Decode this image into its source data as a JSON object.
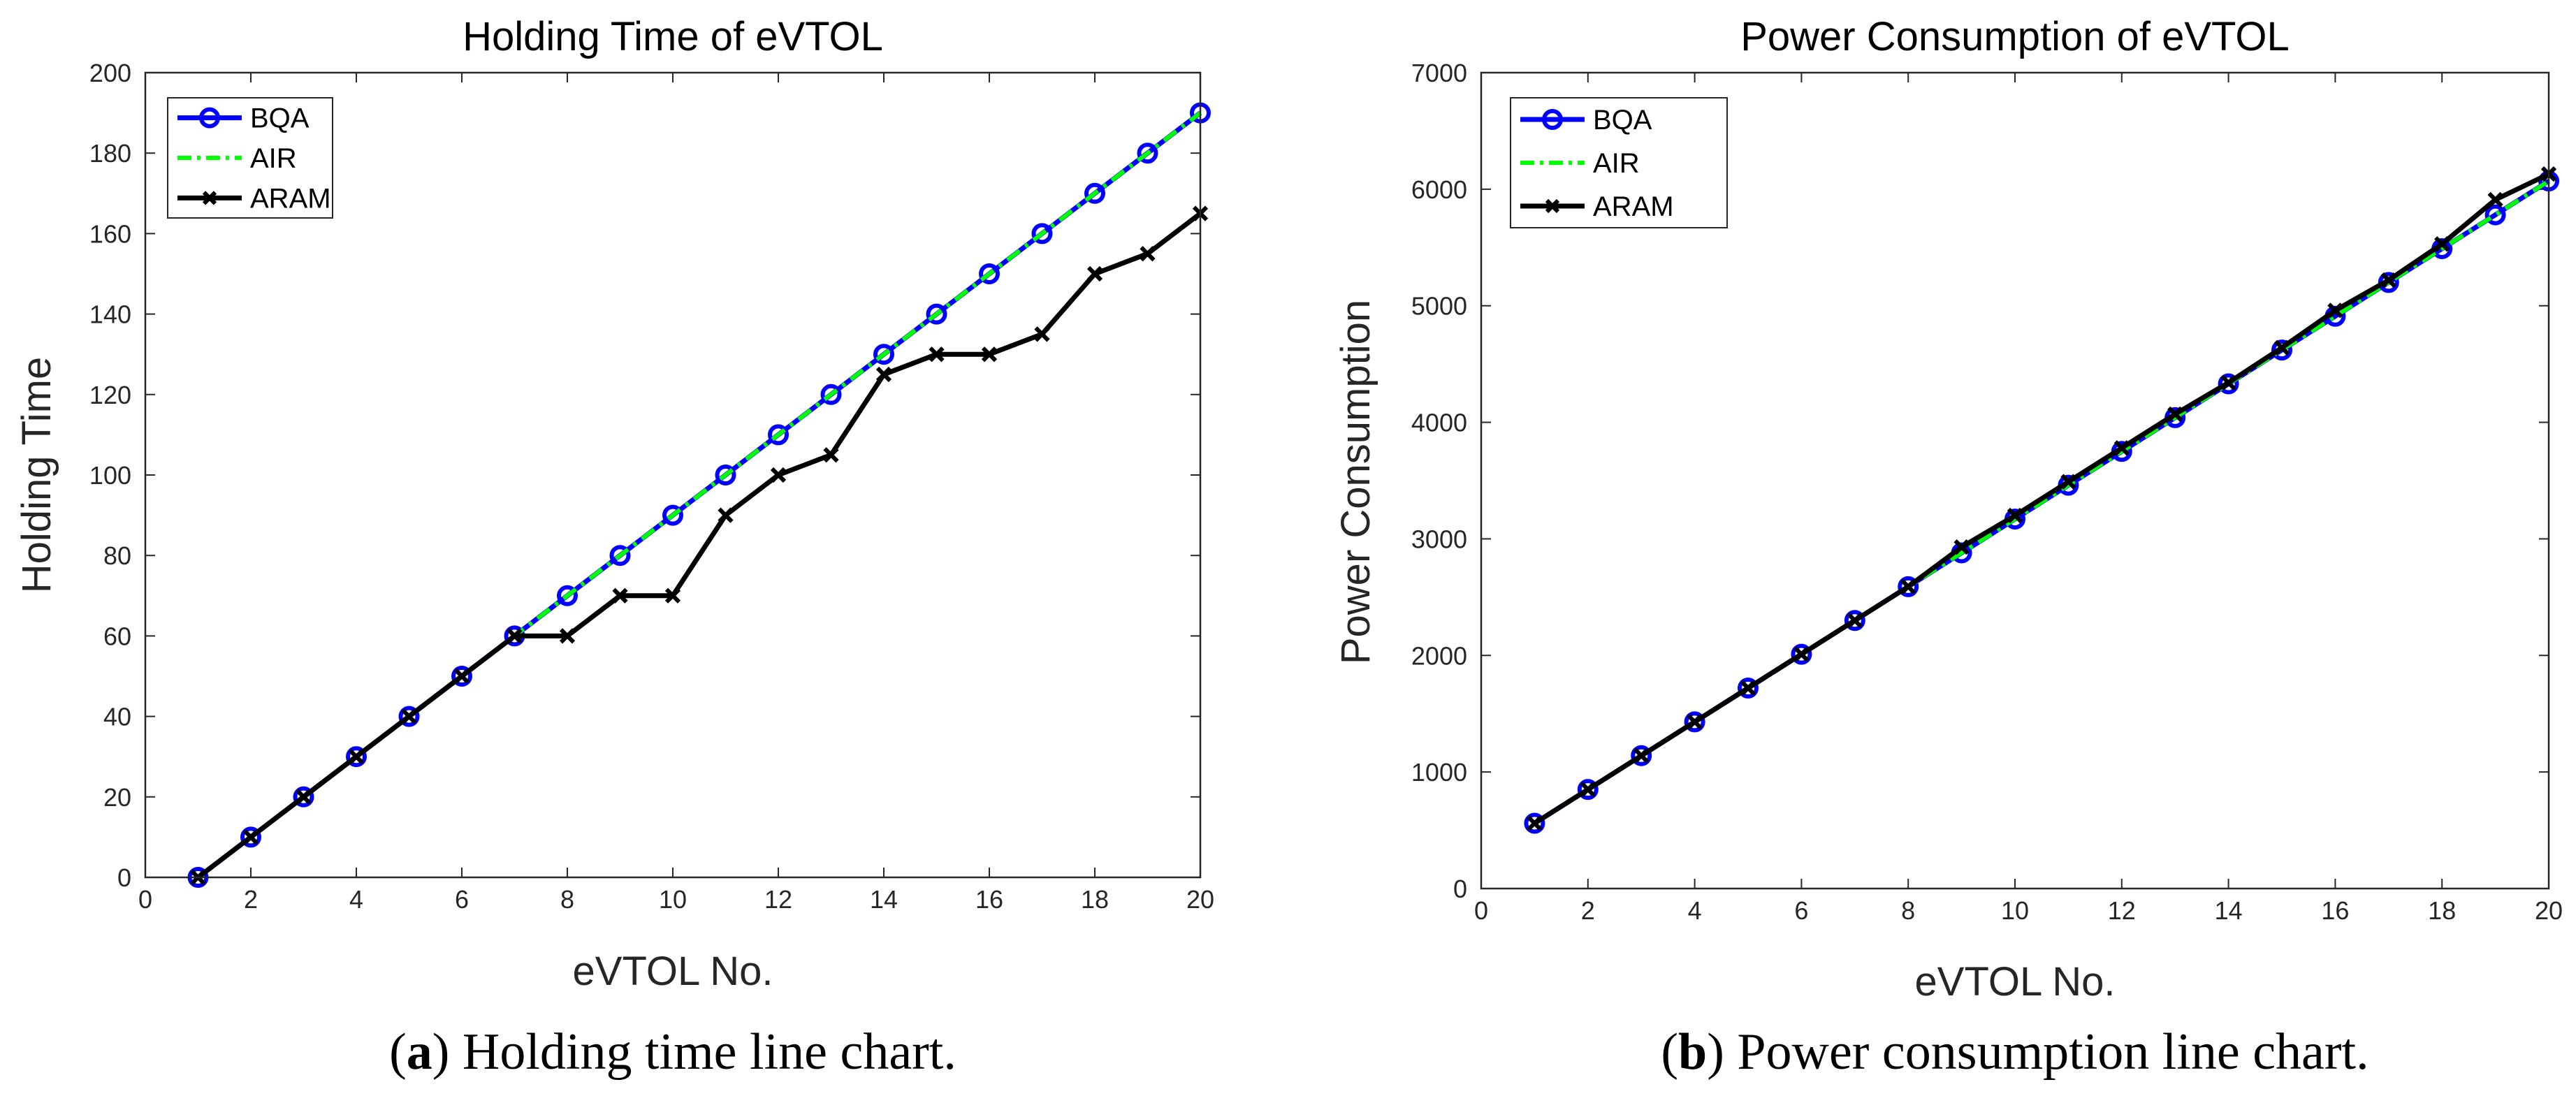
{
  "chart_data": [
    {
      "type": "line",
      "title": "Holding Time of eVTOL",
      "xlabel": "eVTOL No.",
      "ylabel": "Holding Time",
      "xlim": [
        0,
        20
      ],
      "ylim": [
        0,
        200
      ],
      "xticks": [
        0,
        2,
        4,
        6,
        8,
        10,
        12,
        14,
        16,
        18,
        20
      ],
      "yticks": [
        0,
        20,
        40,
        60,
        80,
        100,
        120,
        140,
        160,
        180,
        200
      ],
      "x": [
        1,
        2,
        3,
        4,
        5,
        6,
        7,
        8,
        9,
        10,
        11,
        12,
        13,
        14,
        15,
        16,
        17,
        18,
        19,
        20
      ],
      "legend_position": "top-left",
      "series": [
        {
          "name": "BQA",
          "color": "#0000ff",
          "marker": "circle",
          "style": "solid",
          "values": [
            0,
            10,
            20,
            30,
            40,
            50,
            60,
            70,
            80,
            90,
            100,
            110,
            120,
            130,
            140,
            150,
            160,
            170,
            180,
            190
          ]
        },
        {
          "name": "AIR",
          "color": "#00ff00",
          "marker": "none",
          "style": "dashdot",
          "values": [
            0,
            10,
            20,
            30,
            40,
            50,
            60,
            70,
            80,
            90,
            100,
            110,
            120,
            130,
            140,
            150,
            160,
            170,
            180,
            190
          ]
        },
        {
          "name": "ARAM",
          "color": "#000000",
          "marker": "x",
          "style": "solid",
          "values": [
            0,
            10,
            20,
            30,
            40,
            50,
            60,
            60,
            70,
            70,
            90,
            100,
            105,
            125,
            130,
            130,
            135,
            150,
            155,
            165
          ]
        }
      ],
      "caption_letter": "a",
      "caption_text": " Holding time line chart."
    },
    {
      "type": "line",
      "title": "Power Consumption of eVTOL",
      "xlabel": "eVTOL No.",
      "ylabel": "Power Consumption",
      "xlim": [
        0,
        20
      ],
      "ylim": [
        0,
        7000
      ],
      "xticks": [
        0,
        2,
        4,
        6,
        8,
        10,
        12,
        14,
        16,
        18,
        20
      ],
      "yticks": [
        0,
        1000,
        2000,
        3000,
        4000,
        5000,
        6000,
        7000
      ],
      "x": [
        1,
        2,
        3,
        4,
        5,
        6,
        7,
        8,
        9,
        10,
        11,
        12,
        13,
        14,
        15,
        16,
        17,
        18,
        19,
        20
      ],
      "legend_position": "top-left",
      "series": [
        {
          "name": "BQA",
          "color": "#0000ff",
          "marker": "circle",
          "style": "solid",
          "values": [
            560,
            850,
            1140,
            1430,
            1720,
            2010,
            2300,
            2590,
            2880,
            3170,
            3460,
            3750,
            4040,
            4330,
            4620,
            4910,
            5200,
            5490,
            5780,
            6070
          ]
        },
        {
          "name": "AIR",
          "color": "#00ff00",
          "marker": "none",
          "style": "dashdot",
          "values": [
            560,
            850,
            1140,
            1430,
            1720,
            2010,
            2300,
            2590,
            2880,
            3170,
            3460,
            3750,
            4040,
            4330,
            4620,
            4910,
            5200,
            5490,
            5780,
            6070
          ]
        },
        {
          "name": "ARAM",
          "color": "#000000",
          "marker": "x",
          "style": "solid",
          "values": [
            560,
            850,
            1140,
            1430,
            1720,
            2010,
            2300,
            2590,
            2930,
            3200,
            3490,
            3780,
            4070,
            4340,
            4640,
            4960,
            5220,
            5530,
            5910,
            6130
          ]
        }
      ],
      "caption_letter": "b",
      "caption_text": " Power consumption line chart."
    }
  ]
}
